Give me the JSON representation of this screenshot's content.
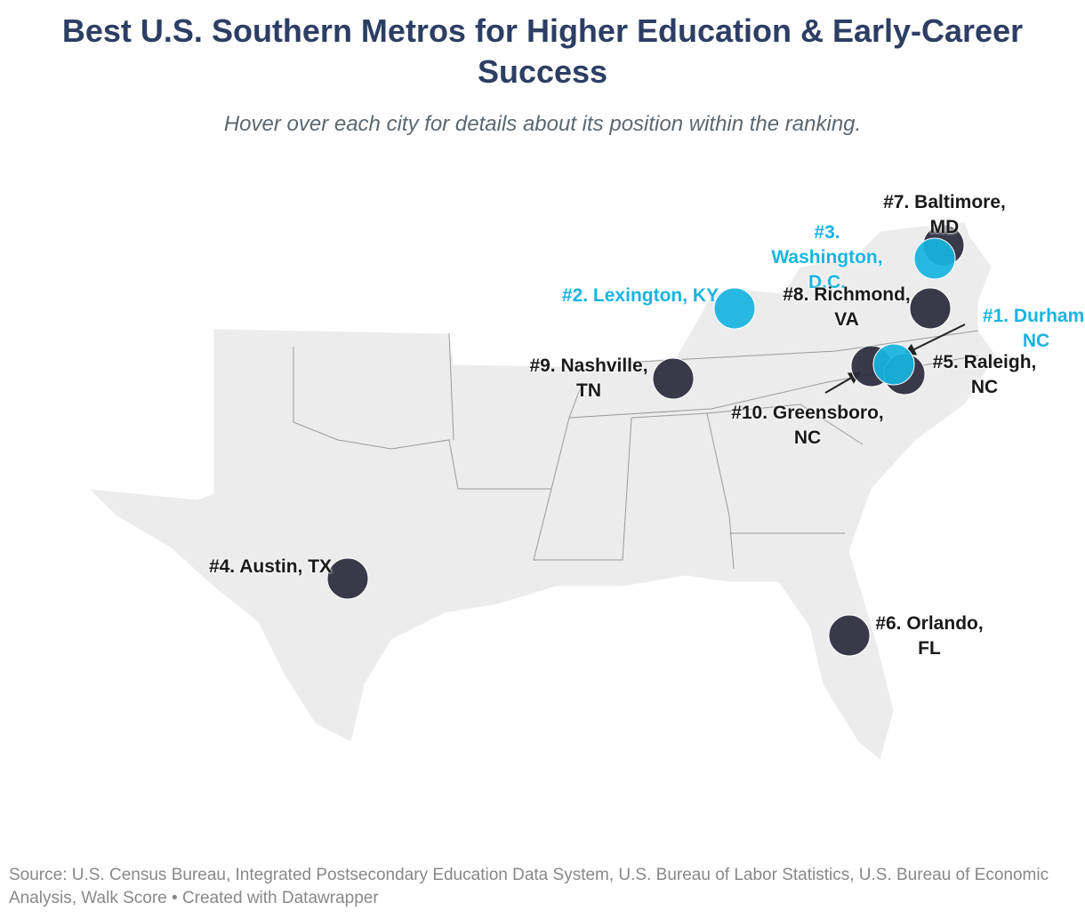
{
  "header": {
    "title": "Best U.S. Southern Metros for Higher Education & Early-Career Success",
    "subtitle": "Hover over each city for details about its position within the ranking."
  },
  "cities": [
    {
      "label": "#1. Durham, NC",
      "color": "#18b4e0"
    },
    {
      "label": "#2. Lexington, KY",
      "color": "#18b4e0"
    },
    {
      "label": "#3. Washington, D.C.",
      "color": "#18b4e0"
    },
    {
      "label": "#4. Austin, TX",
      "color": "#2b2b3d"
    },
    {
      "label": "#5. Raleigh, NC",
      "color": "#2b2b3d"
    },
    {
      "label": "#6. Orlando, FL",
      "color": "#2b2b3d"
    },
    {
      "label": "#7. Baltimore, MD",
      "color": "#2b2b3d"
    },
    {
      "label": "#8. Richmond, VA",
      "color": "#2b2b3d"
    },
    {
      "label": "#9. Nashville, TN",
      "color": "#2b2b3d"
    },
    {
      "label": "#10. Greensboro, NC",
      "color": "#2b2b3d"
    }
  ],
  "footer": {
    "source": "Source: U.S. Census Bureau, Integrated Postsecondary Education Data System, U.S. Bureau of Labor Statistics, U.S. Bureau of Economic Analysis, Walk Score • Created with Datawrapper"
  }
}
